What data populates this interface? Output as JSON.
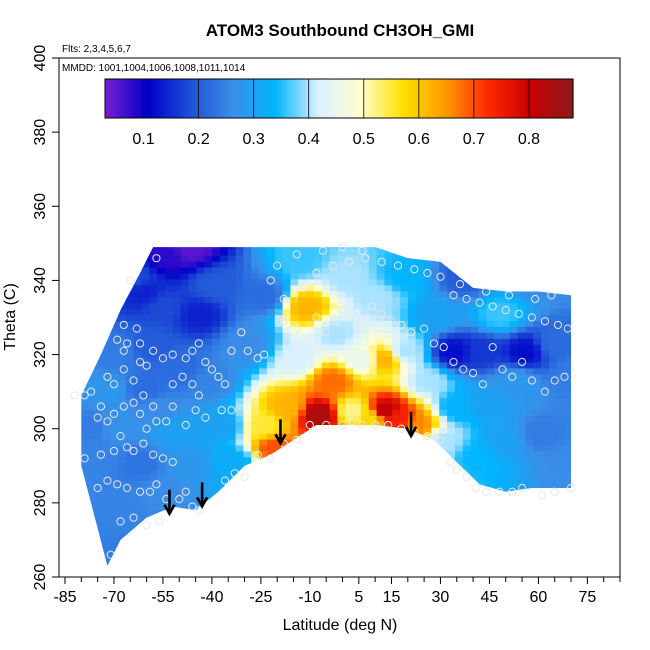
{
  "chart_data": {
    "type": "heatmap",
    "title": "ATOM3 Southbound CH3OH_GMI",
    "subtitle_flights": "Flts: 2,3,4,5,6,7",
    "subtitle_dates": "MMDD: 1001,1004,1006,1008,1011,1014",
    "xlabel": "Latitude (deg N)",
    "ylabel": "Theta (C)",
    "xlim": [
      -85,
      85
    ],
    "ylim": [
      260,
      400
    ],
    "x_tick_labels": [
      "-85",
      "-70",
      "-55",
      "-40",
      "-25",
      "-10",
      "5",
      "15",
      "30",
      "45",
      "60",
      "75"
    ],
    "x_tick_values": [
      -85,
      -70,
      -55,
      -40,
      -25,
      -10,
      5,
      15,
      30,
      45,
      60,
      75
    ],
    "x_minor_ticks": [
      -80,
      -75,
      -65,
      -60,
      -50,
      -45,
      -35,
      -30,
      -20,
      -15,
      -5,
      0,
      10,
      20,
      25,
      35,
      40,
      50,
      55,
      65,
      70,
      80,
      85
    ],
    "y_tick_labels": [
      "260",
      "280",
      "300",
      "320",
      "340",
      "360",
      "380",
      "400"
    ],
    "y_tick_values": [
      260,
      280,
      300,
      320,
      340,
      360,
      380,
      400
    ],
    "colorbar": {
      "range": [
        0.03,
        0.88
      ],
      "tick_labels": [
        "0.1",
        "0.2",
        "0.3",
        "0.4",
        "0.5",
        "0.6",
        "0.7",
        "0.8"
      ],
      "tick_values": [
        0.1,
        0.2,
        0.3,
        0.4,
        0.5,
        0.6,
        0.7,
        0.8
      ],
      "colors": [
        "#7a1fd1",
        "#0000c8",
        "#1e4fd6",
        "#3a8ee8",
        "#00b4ff",
        "#d8f0ff",
        "#ffffd0",
        "#ffe000",
        "#ff9a00",
        "#ff2a00",
        "#c80000",
        "#8c1a1a"
      ]
    },
    "grid": false,
    "field_description_values": {
      "lower_boundary_theta_by_lat": [
        [
          -72,
          263
        ],
        [
          -68,
          270
        ],
        [
          -60,
          276
        ],
        [
          -52,
          279
        ],
        [
          -45,
          278
        ],
        [
          -38,
          283
        ],
        [
          -30,
          290
        ],
        [
          -22,
          293
        ],
        [
          -15,
          297
        ],
        [
          -8,
          301
        ],
        [
          0,
          301
        ],
        [
          10,
          301
        ],
        [
          20,
          300
        ],
        [
          28,
          297
        ],
        [
          35,
          291
        ],
        [
          42,
          285
        ],
        [
          50,
          283
        ],
        [
          58,
          284
        ],
        [
          70,
          284
        ]
      ],
      "upper_boundary_theta_by_lat": [
        [
          -80,
          309
        ],
        [
          -74,
          320
        ],
        [
          -68,
          332
        ],
        [
          -62,
          342
        ],
        [
          -58,
          349
        ],
        [
          -50,
          349
        ],
        [
          -20,
          349
        ],
        [
          10,
          349
        ],
        [
          20,
          346
        ],
        [
          30,
          345
        ],
        [
          40,
          338
        ],
        [
          50,
          337
        ],
        [
          60,
          337
        ],
        [
          70,
          336
        ]
      ]
    },
    "samples": [
      {
        "lat": -73,
        "theta": 309,
        "v": 0.28
      },
      {
        "lat": -75,
        "theta": 292,
        "v": 0.25
      },
      {
        "lat": -70,
        "theta": 300,
        "v": 0.27
      },
      {
        "lat": -68,
        "theta": 276,
        "v": 0.25
      },
      {
        "lat": -66,
        "theta": 268,
        "v": 0.24
      },
      {
        "lat": -63,
        "theta": 290,
        "v": 0.23
      },
      {
        "lat": -61,
        "theta": 310,
        "v": 0.22
      },
      {
        "lat": -58,
        "theta": 305,
        "v": 0.26
      },
      {
        "lat": -60,
        "theta": 322,
        "v": 0.2
      },
      {
        "lat": -55,
        "theta": 282,
        "v": 0.26
      },
      {
        "lat": -52,
        "theta": 298,
        "v": 0.3
      },
      {
        "lat": -50,
        "theta": 315,
        "v": 0.22
      },
      {
        "lat": -48,
        "theta": 290,
        "v": 0.28
      },
      {
        "lat": -56,
        "theta": 332,
        "v": 0.18
      },
      {
        "lat": -62,
        "theta": 336,
        "v": 0.14
      },
      {
        "lat": -55,
        "theta": 346,
        "v": 0.08
      },
      {
        "lat": -48,
        "theta": 348,
        "v": 0.05
      },
      {
        "lat": -45,
        "theta": 330,
        "v": 0.14
      },
      {
        "lat": -40,
        "theta": 338,
        "v": 0.2
      },
      {
        "lat": -42,
        "theta": 312,
        "v": 0.25
      },
      {
        "lat": -38,
        "theta": 300,
        "v": 0.3
      },
      {
        "lat": -34,
        "theta": 290,
        "v": 0.32
      },
      {
        "lat": -30,
        "theta": 322,
        "v": 0.26
      },
      {
        "lat": -25,
        "theta": 335,
        "v": 0.22
      },
      {
        "lat": -25,
        "theta": 300,
        "v": 0.55
      },
      {
        "lat": -22,
        "theta": 294,
        "v": 0.7
      },
      {
        "lat": -18,
        "theta": 305,
        "v": 0.62
      },
      {
        "lat": -15,
        "theta": 318,
        "v": 0.42
      },
      {
        "lat": -12,
        "theta": 332,
        "v": 0.62
      },
      {
        "lat": -14,
        "theta": 345,
        "v": 0.36
      },
      {
        "lat": -8,
        "theta": 303,
        "v": 0.84
      },
      {
        "lat": -4,
        "theta": 312,
        "v": 0.68
      },
      {
        "lat": -3,
        "theta": 325,
        "v": 0.4
      },
      {
        "lat": 0,
        "theta": 340,
        "v": 0.4
      },
      {
        "lat": 2,
        "theta": 304,
        "v": 0.52
      },
      {
        "lat": 5,
        "theta": 318,
        "v": 0.45
      },
      {
        "lat": 8,
        "theta": 302,
        "v": 0.58
      },
      {
        "lat": 12,
        "theta": 304,
        "v": 0.82
      },
      {
        "lat": 12,
        "theta": 318,
        "v": 0.62
      },
      {
        "lat": 10,
        "theta": 335,
        "v": 0.4
      },
      {
        "lat": 16,
        "theta": 302,
        "v": 0.74
      },
      {
        "lat": 18,
        "theta": 320,
        "v": 0.4
      },
      {
        "lat": 17,
        "theta": 340,
        "v": 0.34
      },
      {
        "lat": 22,
        "theta": 300,
        "v": 0.66
      },
      {
        "lat": 25,
        "theta": 312,
        "v": 0.4
      },
      {
        "lat": 28,
        "theta": 330,
        "v": 0.3
      },
      {
        "lat": 30,
        "theta": 296,
        "v": 0.4
      },
      {
        "lat": 34,
        "theta": 305,
        "v": 0.33
      },
      {
        "lat": 33,
        "theta": 320,
        "v": 0.12
      },
      {
        "lat": 36,
        "theta": 340,
        "v": 0.2
      },
      {
        "lat": 40,
        "theta": 292,
        "v": 0.34
      },
      {
        "lat": 42,
        "theta": 320,
        "v": 0.16
      },
      {
        "lat": 43,
        "theta": 306,
        "v": 0.3
      },
      {
        "lat": 47,
        "theta": 330,
        "v": 0.36
      },
      {
        "lat": 48,
        "theta": 296,
        "v": 0.3
      },
      {
        "lat": 52,
        "theta": 312,
        "v": 0.28
      },
      {
        "lat": 55,
        "theta": 320,
        "v": 0.12
      },
      {
        "lat": 58,
        "theta": 340,
        "v": 0.26
      },
      {
        "lat": 60,
        "theta": 298,
        "v": 0.24
      },
      {
        "lat": 64,
        "theta": 322,
        "v": 0.22
      },
      {
        "lat": 68,
        "theta": 290,
        "v": 0.26
      },
      {
        "lat": 70,
        "theta": 314,
        "v": 0.24
      },
      {
        "lat": -65,
        "theta": 340,
        "v": 0.18
      },
      {
        "lat": -70,
        "theta": 320,
        "v": 0.24
      },
      {
        "lat": -78,
        "theta": 300,
        "v": 0.24
      }
    ],
    "observation_points": [
      [
        -57,
        346
      ],
      [
        -65,
        340
      ],
      [
        -67,
        328
      ],
      [
        -63,
        327
      ],
      [
        -66,
        323
      ],
      [
        -69,
        324
      ],
      [
        -67,
        321
      ],
      [
        -62,
        323
      ],
      [
        -58,
        321
      ],
      [
        -60,
        317
      ],
      [
        -55,
        319
      ],
      [
        -52,
        320
      ],
      [
        -48,
        319
      ],
      [
        -46,
        321
      ],
      [
        -44,
        323
      ],
      [
        -42,
        318
      ],
      [
        -40,
        316
      ],
      [
        -38,
        314
      ],
      [
        -36,
        312
      ],
      [
        -34,
        321
      ],
      [
        -31,
        326
      ],
      [
        -29,
        321
      ],
      [
        -26,
        319
      ],
      [
        -24,
        320
      ],
      [
        -34,
        305
      ],
      [
        -37,
        305
      ],
      [
        -42,
        303
      ],
      [
        -45,
        305
      ],
      [
        -48,
        301
      ],
      [
        -52,
        306
      ],
      [
        -54,
        302
      ],
      [
        -57,
        302
      ],
      [
        -60,
        300
      ],
      [
        -62,
        304
      ],
      [
        -64,
        307
      ],
      [
        -67,
        306
      ],
      [
        -70,
        304
      ],
      [
        -72,
        302
      ],
      [
        -74,
        306
      ],
      [
        -77,
        310
      ],
      [
        -79,
        309
      ],
      [
        -82,
        309
      ],
      [
        -68,
        298
      ],
      [
        -66,
        295
      ],
      [
        -64,
        294
      ],
      [
        -61,
        296
      ],
      [
        -58,
        293
      ],
      [
        -55,
        292
      ],
      [
        -52,
        291
      ],
      [
        -70,
        294
      ],
      [
        -74,
        293
      ],
      [
        -79,
        292
      ],
      [
        -72,
        286
      ],
      [
        -75,
        284
      ],
      [
        -69,
        285
      ],
      [
        -66,
        284
      ],
      [
        -62,
        283
      ],
      [
        -59,
        283
      ],
      [
        -57,
        285
      ],
      [
        -54,
        281
      ],
      [
        -50,
        281
      ],
      [
        -48,
        283
      ],
      [
        -46,
        279
      ],
      [
        -44,
        278
      ],
      [
        -56,
        275
      ],
      [
        -60,
        274
      ],
      [
        -64,
        276
      ],
      [
        -68,
        275
      ],
      [
        -71,
        266
      ],
      [
        -52,
        312
      ],
      [
        -49,
        314
      ],
      [
        -46,
        312
      ],
      [
        -44,
        309
      ],
      [
        -36,
        286
      ],
      [
        -33,
        288
      ],
      [
        -30,
        287
      ],
      [
        -26,
        293
      ],
      [
        -22,
        292
      ],
      [
        -18,
        296
      ],
      [
        -14,
        297
      ],
      [
        -10,
        301
      ],
      [
        -5,
        301
      ],
      [
        0,
        301
      ],
      [
        3,
        302
      ],
      [
        6,
        301
      ],
      [
        10,
        301
      ],
      [
        14,
        301
      ],
      [
        18,
        300
      ],
      [
        22,
        299
      ],
      [
        26,
        298
      ],
      [
        30,
        297
      ],
      [
        33,
        291
      ],
      [
        35,
        289
      ],
      [
        38,
        287
      ],
      [
        41,
        284
      ],
      [
        44,
        283
      ],
      [
        48,
        283
      ],
      [
        52,
        283
      ],
      [
        55,
        284
      ],
      [
        61,
        282
      ],
      [
        65,
        283
      ],
      [
        70,
        284
      ],
      [
        -18,
        329
      ],
      [
        -14,
        327
      ],
      [
        -8,
        330
      ],
      [
        -5,
        326
      ],
      [
        -2,
        329
      ],
      [
        0,
        332
      ],
      [
        3,
        331
      ],
      [
        6,
        329
      ],
      [
        9,
        333
      ],
      [
        12,
        331
      ],
      [
        15,
        329
      ],
      [
        18,
        328
      ],
      [
        21,
        326
      ],
      [
        25,
        327
      ],
      [
        28,
        323
      ],
      [
        31,
        322
      ],
      [
        34,
        318
      ],
      [
        37,
        316
      ],
      [
        40,
        315
      ],
      [
        43,
        312
      ],
      [
        46,
        322
      ],
      [
        49,
        316
      ],
      [
        52,
        314
      ],
      [
        55,
        318
      ],
      [
        58,
        313
      ],
      [
        62,
        310
      ],
      [
        65,
        313
      ],
      [
        68,
        314
      ],
      [
        -22,
        340
      ],
      [
        -18,
        335
      ],
      [
        -12,
        338
      ],
      [
        -8,
        342
      ],
      [
        -3,
        344
      ],
      [
        2,
        345
      ],
      [
        7,
        346
      ],
      [
        12,
        345
      ],
      [
        17,
        344
      ],
      [
        22,
        343
      ],
      [
        26,
        342
      ],
      [
        30,
        341
      ],
      [
        34,
        336
      ],
      [
        38,
        335
      ],
      [
        42,
        334
      ],
      [
        46,
        333
      ],
      [
        50,
        332
      ],
      [
        54,
        331
      ],
      [
        58,
        330
      ],
      [
        62,
        329
      ],
      [
        66,
        328
      ],
      [
        69,
        327
      ],
      [
        -20,
        344
      ],
      [
        -14,
        347
      ],
      [
        -6,
        348
      ],
      [
        0,
        349
      ],
      [
        6,
        348
      ],
      [
        36,
        339
      ],
      [
        44,
        337
      ],
      [
        51,
        336
      ],
      [
        59,
        335
      ],
      [
        64,
        336
      ],
      [
        -72,
        314
      ],
      [
        -75,
        303
      ],
      [
        -64,
        313
      ],
      [
        -61,
        309
      ],
      [
        -58,
        306
      ],
      [
        -67,
        316
      ],
      [
        -70,
        312
      ],
      [
        -62,
        318
      ]
    ],
    "arrows": [
      {
        "lat": -53,
        "theta": 283
      },
      {
        "lat": -43,
        "theta": 285
      },
      {
        "lat": -19,
        "theta": 302
      },
      {
        "lat": 21,
        "theta": 304
      }
    ]
  }
}
